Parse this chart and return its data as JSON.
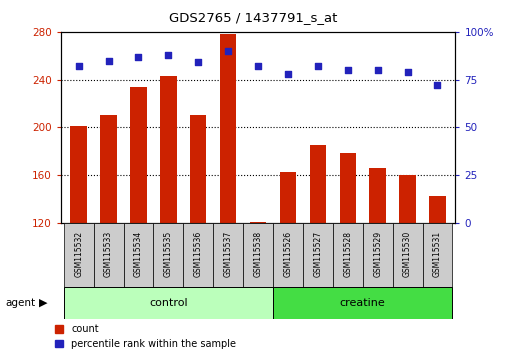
{
  "title": "GDS2765 / 1437791_s_at",
  "samples": [
    "GSM115532",
    "GSM115533",
    "GSM115534",
    "GSM115535",
    "GSM115536",
    "GSM115537",
    "GSM115538",
    "GSM115526",
    "GSM115527",
    "GSM115528",
    "GSM115529",
    "GSM115530",
    "GSM115531"
  ],
  "counts": [
    201,
    210,
    234,
    243,
    210,
    278,
    121,
    163,
    185,
    179,
    166,
    160,
    143
  ],
  "percentiles": [
    82,
    85,
    87,
    88,
    84,
    90,
    82,
    78,
    82,
    80,
    80,
    79,
    72
  ],
  "groups": [
    {
      "label": "control",
      "start": 0,
      "end": 7,
      "color": "#bbffbb"
    },
    {
      "label": "creatine",
      "start": 7,
      "end": 13,
      "color": "#44dd44"
    }
  ],
  "ylim_left": [
    120,
    280
  ],
  "ylim_right": [
    0,
    100
  ],
  "yticks_left": [
    120,
    160,
    200,
    240,
    280
  ],
  "yticks_right": [
    0,
    25,
    50,
    75,
    100
  ],
  "bar_color": "#cc2200",
  "dot_color": "#2222bb",
  "bar_width": 0.55,
  "grid_yticks": [
    160,
    200,
    240
  ],
  "tick_label_area_color": "#cccccc",
  "legend_count_label": "count",
  "legend_percentile_label": "percentile rank within the sample",
  "agent_label": "agent"
}
